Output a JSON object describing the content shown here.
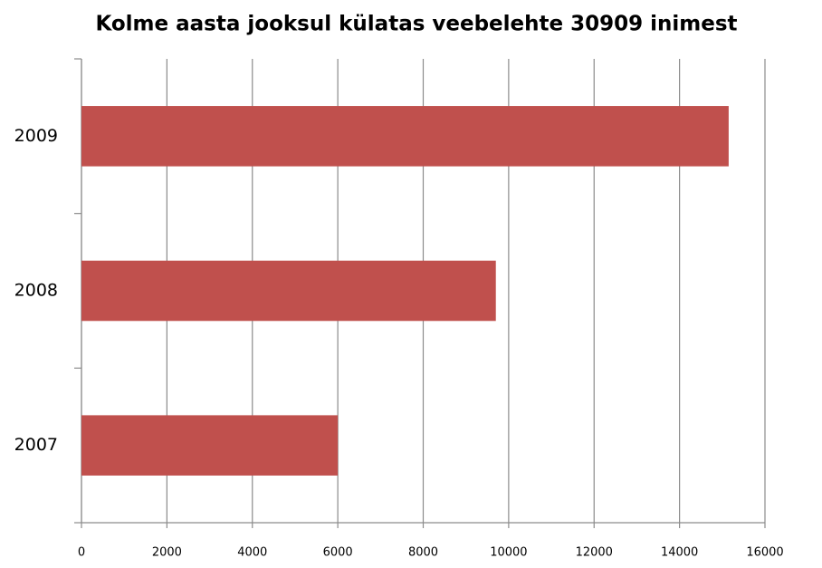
{
  "chart_data": {
    "type": "barh",
    "title": "Kolme aasta jooksul külatas veebelehte 30909 inimest",
    "categories": [
      "2009",
      "2008",
      "2007"
    ],
    "values": [
      15150,
      9700,
      6000
    ],
    "color": "#c0504d",
    "xlim": [
      0,
      16000
    ],
    "xticks": [
      0,
      2000,
      4000,
      6000,
      8000,
      10000,
      12000,
      14000,
      16000
    ],
    "grid": true
  }
}
